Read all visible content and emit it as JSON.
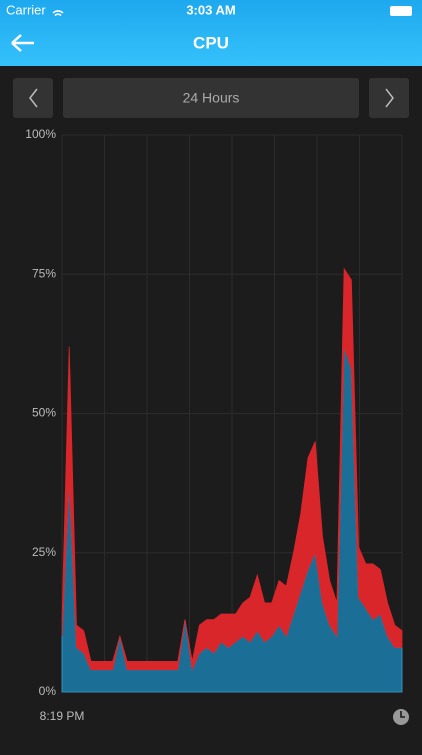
{
  "status_bar": {
    "carrier": "Carrier",
    "time": "3:03 AM"
  },
  "nav": {
    "title": "CPU"
  },
  "controls": {
    "range": "24 Hours"
  },
  "chart_data": {
    "type": "stacked-area",
    "categories": [
      "8:19 PM",
      null,
      null,
      null,
      null,
      null,
      null,
      null,
      null,
      null,
      null,
      null,
      null,
      null,
      null,
      null,
      null,
      null,
      null,
      null,
      null,
      null,
      null,
      null,
      null,
      null,
      null,
      null,
      null,
      null,
      null,
      null,
      null,
      null,
      null,
      null,
      null,
      null,
      null,
      null,
      null,
      null,
      null,
      null,
      null,
      null,
      null,
      null
    ],
    "series": [
      {
        "color": "#1b6e96",
        "values": [
          10,
          38,
          8,
          7,
          4,
          4,
          4,
          4,
          10,
          4,
          4,
          4,
          4,
          4,
          4,
          4,
          4,
          13,
          4,
          7,
          8,
          7,
          9,
          8,
          9,
          10,
          9,
          11,
          9,
          10,
          12,
          10,
          14,
          18,
          22,
          25,
          16,
          12,
          10,
          62,
          58,
          17,
          15,
          13,
          14,
          10,
          8,
          8
        ]
      },
      {
        "color": "#d9262b",
        "values": [
          3,
          24,
          4,
          4,
          1.5,
          1.5,
          1.5,
          1.5,
          0,
          1.5,
          1.5,
          1.5,
          1.5,
          1.5,
          1.5,
          1.5,
          1.5,
          0,
          1.5,
          5,
          5,
          6,
          5,
          6,
          5,
          6,
          8,
          10,
          7,
          6,
          8,
          9,
          11,
          14,
          20,
          20,
          12,
          8,
          6,
          14,
          16,
          9,
          8,
          10,
          8,
          6,
          4,
          3
        ]
      }
    ],
    "ylim": [
      0,
      100
    ],
    "yticks": [
      {
        "value": 0,
        "label": "0%"
      },
      {
        "value": 25,
        "label": "25%"
      },
      {
        "value": 50,
        "label": "50%"
      },
      {
        "value": 75,
        "label": "75%"
      },
      {
        "value": 100,
        "label": "100%"
      }
    ],
    "grid": true
  }
}
